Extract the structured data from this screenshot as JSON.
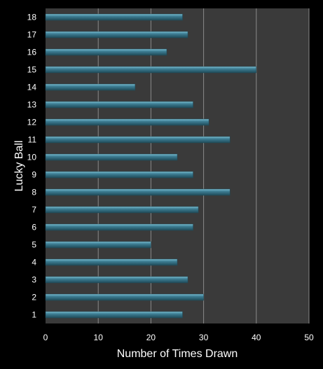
{
  "chart_data": {
    "type": "bar",
    "orientation": "horizontal",
    "title": "",
    "xlabel": "Number of Times Drawn",
    "ylabel": "Lucky Ball",
    "categories": [
      "1",
      "2",
      "3",
      "4",
      "5",
      "6",
      "7",
      "8",
      "9",
      "10",
      "11",
      "12",
      "13",
      "14",
      "15",
      "16",
      "17",
      "18"
    ],
    "values": [
      26,
      30,
      27,
      25,
      20,
      28,
      29,
      35,
      28,
      25,
      35,
      31,
      28,
      17,
      40,
      23,
      27,
      26
    ],
    "xlim": [
      0,
      50
    ],
    "xticks": [
      0,
      10,
      20,
      30,
      40,
      50
    ],
    "grid": "vertical",
    "legend": "none",
    "colors": {
      "background": "#000000",
      "plot_area": "#3a3a3a",
      "grid": "#8a8a8a",
      "bar": "#3f8096",
      "bar_highlight": "#7fc0d4",
      "bar_shadow": "#1f4a58",
      "text": "#ffffff"
    }
  }
}
